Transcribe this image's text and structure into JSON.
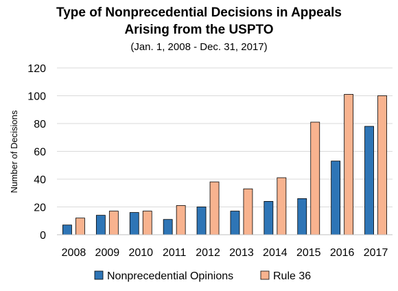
{
  "chart_data": {
    "type": "bar",
    "title_line1": "Type of Nonprecedential Decisions in Appeals",
    "title_line2": "Arising from the USPTO",
    "subtitle": "(Jan. 1, 2008 - Dec. 31, 2017)",
    "xlabel": "",
    "ylabel": "Number of Decisions",
    "ylim": [
      0,
      120
    ],
    "yticks": [
      0,
      20,
      40,
      60,
      80,
      100,
      120
    ],
    "grid": true,
    "legend_position": "bottom",
    "categories": [
      "2008",
      "2009",
      "2010",
      "2011",
      "2012",
      "2013",
      "2014",
      "2015",
      "2016",
      "2017"
    ],
    "series": [
      {
        "name": "Nonprecedential Opinions",
        "color": "#2e75b6",
        "values": [
          7,
          14,
          16,
          11,
          20,
          17,
          24,
          26,
          53,
          78
        ]
      },
      {
        "name": "Rule 36",
        "color": "#f8b38f",
        "values": [
          12,
          17,
          17,
          21,
          38,
          33,
          41,
          81,
          101,
          100
        ]
      }
    ]
  }
}
